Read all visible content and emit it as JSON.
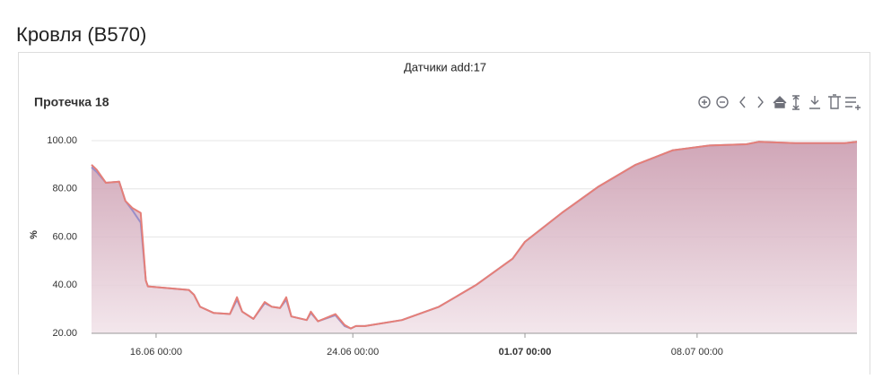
{
  "page_title": "Кровля (B570)",
  "card_title": "Датчики add:17",
  "chart_data": {
    "type": "area",
    "title": "Протечка 18",
    "y_label": "%",
    "x": [
      "13.06 09:00",
      "13.06 14:00",
      "13.06 23:00",
      "14.06 12:00",
      "14.06 18:00",
      "15.06 01:00",
      "15.06 09:00",
      "15.06 14:00",
      "15.06 16:00",
      "17.06 08:00",
      "17.06 13:00",
      "17.06 19:00",
      "18.06 08:00",
      "19.06 00:00",
      "19.06 07:00",
      "19.06 12:00",
      "19.06 23:00",
      "20.06 10:00",
      "20.06 17:00",
      "21.06 01:00",
      "21.06 07:00",
      "21.06 12:00",
      "22.06 03:00",
      "22.06 07:00",
      "22.06 14:00",
      "23.06 07:00",
      "23.06 16:00",
      "23.06 22:00",
      "24.06 03:00",
      "24.06 12:00",
      "26.06 00:00",
      "27.06 12:00",
      "29.06 00:00",
      "30.06 12:00",
      "01.07 00:00",
      "02.07 12:00",
      "04.07 00:00",
      "05.07 12:00",
      "07.07 00:00",
      "08.07 12:00",
      "10.07 00:00",
      "10.07 12:00",
      "12.07 00:00",
      "14.07 00:00",
      "14.07 12:00"
    ],
    "series": [
      {
        "color": "#9a8ec8",
        "values": [
          89,
          87,
          82.5,
          83,
          75,
          71,
          66,
          42,
          39.5,
          38,
          36,
          31,
          28.5,
          28,
          34,
          29,
          26,
          32.5,
          31,
          30.5,
          34,
          27,
          25.5,
          28.5,
          25,
          27.5,
          23,
          22,
          23,
          23,
          25.5,
          31,
          40,
          51,
          58,
          70,
          81,
          90,
          96,
          98,
          98.5,
          99.5,
          99,
          99,
          99.5
        ]
      },
      {
        "color": "#e57f78",
        "values": [
          90,
          88,
          82.5,
          83,
          75,
          72,
          70,
          42,
          39.5,
          38,
          36,
          31,
          28.5,
          28,
          35,
          29,
          26,
          33,
          31,
          30.5,
          35,
          27,
          25.5,
          29,
          25,
          28,
          23.5,
          22,
          23,
          23,
          25.5,
          31,
          40,
          51,
          58,
          70,
          81,
          90,
          96,
          98,
          98.5,
          99.5,
          99,
          99,
          99.5
        ]
      }
    ],
    "xlim": [
      "13.06 09:00",
      "14.07 12:00"
    ],
    "xticks": [
      "16.06 00:00",
      "24.06 00:00",
      "01.07 00:00",
      "08.07 00:00"
    ],
    "ylim": [
      20,
      100
    ],
    "yticks": [
      {
        "value": 20,
        "label": "20.00"
      },
      {
        "value": 40,
        "label": "40.00"
      },
      {
        "value": 60,
        "label": "60.00"
      },
      {
        "value": 80,
        "label": "80.00"
      },
      {
        "value": 100,
        "label": "100.00"
      }
    ],
    "grid": true
  }
}
